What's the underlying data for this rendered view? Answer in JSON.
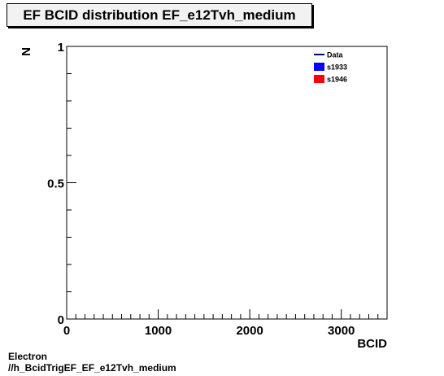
{
  "chart_data": {
    "type": "bar",
    "title": "EF BCID distribution EF_e12Tvh_medium",
    "xlabel": "BCID",
    "ylabel": "N",
    "xlim": [
      0,
      3500
    ],
    "ylim": [
      0,
      1
    ],
    "x_ticks": [
      {
        "value": 0,
        "label": "0"
      },
      {
        "value": 1000,
        "label": "1000"
      },
      {
        "value": 2000,
        "label": "2000"
      },
      {
        "value": 3000,
        "label": "3000"
      }
    ],
    "y_ticks": [
      {
        "value": 0,
        "label": "0"
      },
      {
        "value": 0.5,
        "label": "0.5"
      },
      {
        "value": 1,
        "label": "1"
      }
    ],
    "grid": false,
    "legend_position": "top-right",
    "series": [
      {
        "name": "Data",
        "color": "#000080",
        "style": "line",
        "values": []
      },
      {
        "name": "s1933",
        "color": "#0000ff",
        "style": "fill",
        "values": []
      },
      {
        "name": "s1946",
        "color": "#ff0000",
        "style": "fill",
        "values": []
      }
    ]
  },
  "footer": {
    "line1": "Electron",
    "line2": "//h_BcidTrigEF_EF_e12Tvh_medium"
  }
}
